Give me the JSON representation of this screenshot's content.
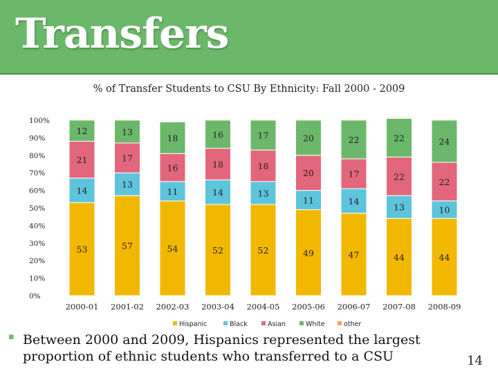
{
  "slide": {
    "title": "Transfers",
    "bullet": "Between 2000 and 2009, Hispanics represented the largest proportion of ethnic students who transferred to a CSU",
    "page_number": "14"
  },
  "colors": {
    "title_bar": "#6bb86b",
    "Hispanic": "#f2b800",
    "Black": "#5ec4dc",
    "Asian": "#e3677c",
    "White": "#6bb86b",
    "other": "#f2a35e"
  },
  "chart_data": {
    "type": "bar",
    "stacked": true,
    "title": "% of Transfer Students to CSU By Ethnicity: Fall 2000 - 2009",
    "categories": [
      "2000-01",
      "2001-02",
      "2002-03",
      "2003-04",
      "2004-05",
      "2005-06",
      "2006-07",
      "2007-08",
      "2008-09"
    ],
    "series": [
      {
        "name": "Hispanic",
        "values": [
          53,
          57,
          54,
          52,
          52,
          49,
          47,
          44,
          44
        ],
        "labels": [
          "53",
          "57",
          "54",
          "52",
          "52",
          "49",
          "47",
          "44",
          "44"
        ]
      },
      {
        "name": "Black",
        "values": [
          14,
          13,
          11,
          14,
          13,
          11,
          14,
          13,
          10
        ],
        "labels": [
          "14",
          "13",
          "11",
          "14",
          "13",
          "11",
          "14",
          "13",
          "10"
        ]
      },
      {
        "name": "Asian",
        "values": [
          21,
          17,
          16,
          18,
          18,
          20,
          17,
          22,
          22
        ],
        "labels": [
          "21",
          "17",
          "16",
          "18",
          "18",
          "20",
          "17",
          "22",
          "22"
        ]
      },
      {
        "name": "White",
        "values": [
          12,
          13,
          18,
          16,
          17,
          20,
          22,
          22,
          24
        ],
        "labels": [
          "12",
          "13",
          "18",
          "16",
          "17",
          "20",
          "22",
          "22",
          "24"
        ]
      },
      {
        "name": "other",
        "values": [
          0.5,
          0.5,
          0.5,
          0.5,
          0.5,
          0.5,
          0.5,
          0.5,
          0.5
        ],
        "labels": [
          "",
          "",
          "",
          "",
          "",
          "",
          "",
          "",
          ""
        ]
      }
    ],
    "yticks": [
      "0%",
      "10%",
      "20%",
      "30%",
      "40%",
      "50%",
      "60%",
      "70%",
      "80%",
      "90%",
      "100%"
    ],
    "ylim": [
      0,
      100
    ],
    "legend_position": "bottom",
    "grid": false
  }
}
